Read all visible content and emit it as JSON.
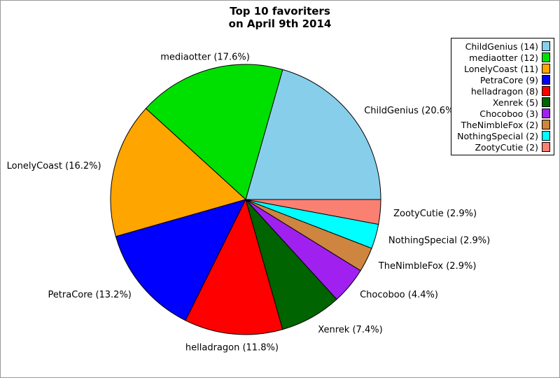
{
  "figure": {
    "title_line1": "Top 10 favoriters",
    "title_line2": "on April 9th 2014"
  },
  "chart_data": {
    "type": "pie",
    "title": "Top 10 favoriters on April 9th 2014",
    "direction": "counterclockwise",
    "start_angle_deg": 0,
    "legend_position": "upper right",
    "slice_edge_color": "#000000",
    "background": "#ffffff",
    "slices": [
      {
        "label": "ChildGenius",
        "count": 14,
        "percent_label": "20.6%",
        "color": "#87CEEB"
      },
      {
        "label": "mediaotter",
        "count": 12,
        "percent_label": "17.6%",
        "color": "#00E000"
      },
      {
        "label": "LonelyCoast",
        "count": 11,
        "percent_label": "16.2%",
        "color": "#FFA500"
      },
      {
        "label": "PetraCore",
        "count": 9,
        "percent_label": "13.2%",
        "color": "#0000FF"
      },
      {
        "label": "helladragon",
        "count": 8,
        "percent_label": "11.8%",
        "color": "#FF0000"
      },
      {
        "label": "Xenrek",
        "count": 5,
        "percent_label": "7.4%",
        "color": "#006400"
      },
      {
        "label": "Chocoboo",
        "count": 3,
        "percent_label": "4.4%",
        "color": "#A020F0"
      },
      {
        "label": "TheNimbleFox",
        "count": 2,
        "percent_label": "2.9%",
        "color": "#CD853F"
      },
      {
        "label": "NothingSpecial",
        "count": 2,
        "percent_label": "2.9%",
        "color": "#00FFFF"
      },
      {
        "label": "ZootyCutie",
        "count": 2,
        "percent_label": "2.9%",
        "color": "#FA8072"
      }
    ]
  }
}
